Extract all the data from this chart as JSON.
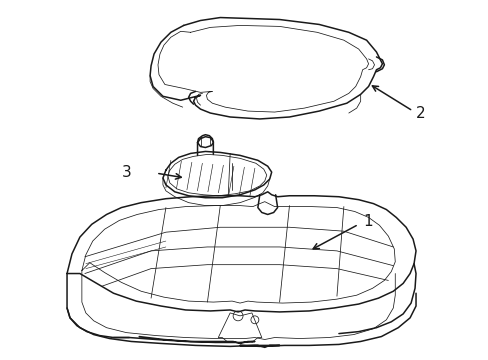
{
  "bg_color": "#ffffff",
  "line_color": "#1a1a1a",
  "lw_outer": 1.1,
  "lw_inner": 0.55,
  "label_1": "1",
  "label_2": "2",
  "label_3": "3",
  "font_size": 10
}
